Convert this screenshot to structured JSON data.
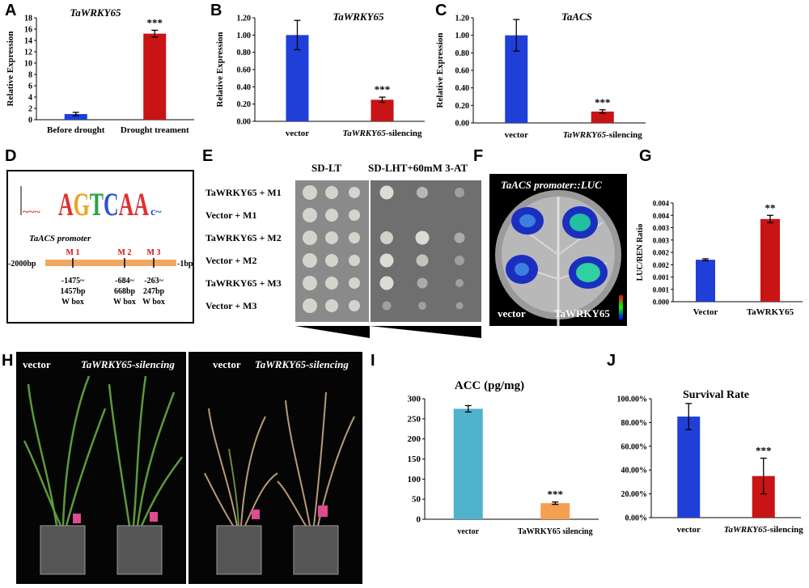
{
  "panels": {
    "A": {
      "label": "A",
      "title": "TaWRKY65",
      "ylabel": "Relative Expression",
      "chart_data": {
        "type": "bar",
        "categories": [
          "Before drought",
          "Drought treament"
        ],
        "values": [
          1.0,
          15.2
        ],
        "errors": [
          0.3,
          0.6
        ],
        "colors": [
          "#1f3fd8",
          "#c81414"
        ],
        "ylim": [
          0,
          18
        ],
        "yticks": [
          "0",
          "2",
          "4",
          "6",
          "8",
          "10",
          "12",
          "14",
          "16",
          "18"
        ],
        "annotations": [
          "",
          "***"
        ]
      }
    },
    "B": {
      "label": "B",
      "title": "TaWRKY65",
      "ylabel": "Relative Expression",
      "chart_data": {
        "type": "bar",
        "categories": [
          "vector",
          "TaWRKY65-silencing"
        ],
        "values": [
          1.0,
          0.25
        ],
        "errors": [
          0.17,
          0.03
        ],
        "colors": [
          "#1f3fd8",
          "#c81414"
        ],
        "ylim": [
          0,
          1.2
        ],
        "yticks": [
          "0.00",
          "0.20",
          "0.40",
          "0.60",
          "0.80",
          "1.00",
          "1.20"
        ],
        "annotations": [
          "",
          "***"
        ]
      }
    },
    "C": {
      "label": "C",
      "title": "TaACS",
      "ylabel": "Relative Expression",
      "chart_data": {
        "type": "bar",
        "categories": [
          "vector",
          "TaWRKY65-silencing"
        ],
        "values": [
          1.0,
          0.13
        ],
        "errors": [
          0.18,
          0.02
        ],
        "colors": [
          "#1f3fd8",
          "#c81414"
        ],
        "ylim": [
          0,
          1.2
        ],
        "yticks": [
          "0.00",
          "0.20",
          "0.40",
          "0.60",
          "0.80",
          "1.00",
          "1.20"
        ],
        "annotations": [
          "",
          "***"
        ]
      }
    },
    "D": {
      "label": "D",
      "promoter_title": "TaACS promoter",
      "motif": "AGTCAA",
      "left_end": "-2000bp",
      "right_end": "-1bp",
      "sites": [
        {
          "name": "M 1",
          "l1": "-1475~",
          "l2": "1457bp",
          "l3": "W box"
        },
        {
          "name": "M 2",
          "l1": "-684~",
          "l2": "668bp",
          "l3": "W box"
        },
        {
          "name": "M 3",
          "l1": "-263~",
          "l2": "247bp",
          "l3": "W box"
        }
      ]
    },
    "E": {
      "label": "E",
      "col1": "SD-LT",
      "col2": "SD-LHT+60mM 3-AT",
      "rows": [
        "TaWRKY65 + M1",
        "Vector + M1",
        "TaWRKY65 + M2",
        "Vector + M2",
        "TaWRKY65 + M3",
        "Vector + M3"
      ]
    },
    "F": {
      "label": "F",
      "title": "TaACS promoter::LUC",
      "left": "vector",
      "right": "TaWRKY65"
    },
    "G": {
      "label": "G",
      "ylabel": "LUC/REN Ratio",
      "chart_data": {
        "type": "bar",
        "categories": [
          "Vector",
          "TaWRKY65"
        ],
        "values": [
          0.0017,
          0.00335
        ],
        "errors": [
          4e-05,
          0.00015
        ],
        "colors": [
          "#1f3fd8",
          "#c81414"
        ],
        "ylim": [
          0,
          0.004
        ],
        "yticks": [
          "0.000",
          "0.001",
          "0.001",
          "0.002",
          "0.002",
          "0.003",
          "0.003",
          "0.004",
          "0.004"
        ],
        "annotations": [
          "",
          "**"
        ]
      }
    },
    "H": {
      "label": "H",
      "left_a": "vector",
      "left_b": "TaWRKY65-silencing",
      "right_a": "vector",
      "right_b": "TaWRKY65-silencing"
    },
    "I": {
      "label": "I",
      "title": "ACC (pg/mg)",
      "chart_data": {
        "type": "bar",
        "categories": [
          "vector",
          "TaWRKY65 silencing"
        ],
        "values": [
          275,
          40
        ],
        "errors": [
          8,
          3
        ],
        "colors": [
          "#4fb3cc",
          "#f5a050"
        ],
        "ylim": [
          0,
          300
        ],
        "yticks": [
          "0",
          "50",
          "100",
          "150",
          "200",
          "250",
          "300"
        ],
        "annotations": [
          "",
          "***"
        ]
      }
    },
    "J": {
      "label": "J",
      "title": "Survival Rate",
      "chart_data": {
        "type": "bar",
        "categories": [
          "vector",
          "TaWRKY65-silencing"
        ],
        "values": [
          0.85,
          0.35
        ],
        "errors": [
          0.11,
          0.15
        ],
        "colors": [
          "#1f3fd8",
          "#c81414"
        ],
        "ylim": [
          0,
          1.0
        ],
        "yticks": [
          "0.00%",
          "20.00%",
          "40.00%",
          "60.00%",
          "80.00%",
          "100.00%"
        ],
        "annotations": [
          "",
          "***"
        ]
      }
    }
  }
}
